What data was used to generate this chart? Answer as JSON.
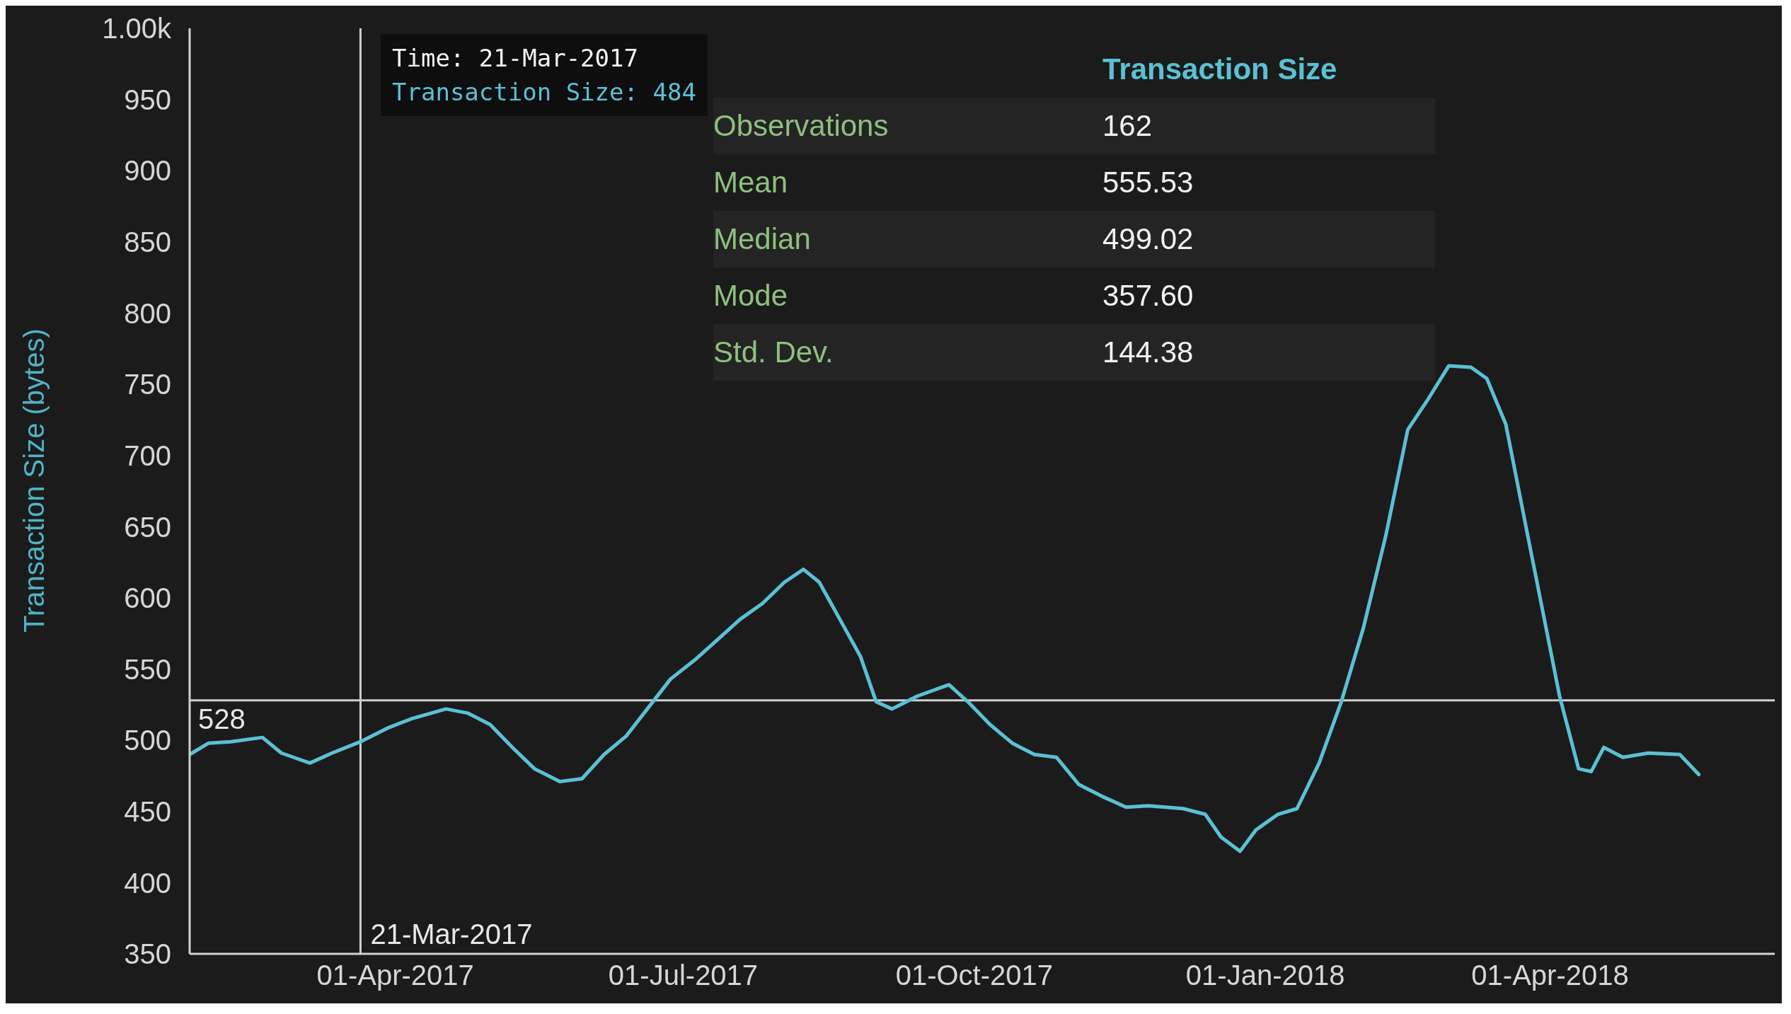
{
  "chart_data": {
    "type": "line",
    "ylabel": "Transaction Size (bytes)",
    "x": [
      "2017-01-26",
      "2017-02-01",
      "2017-02-08",
      "2017-02-18",
      "2017-02-24",
      "2017-03-05",
      "2017-03-12",
      "2017-03-21",
      "2017-03-30",
      "2017-04-06",
      "2017-04-17",
      "2017-04-24",
      "2017-05-01",
      "2017-05-08",
      "2017-05-15",
      "2017-05-23",
      "2017-05-30",
      "2017-06-06",
      "2017-06-13",
      "2017-06-20",
      "2017-06-27",
      "2017-07-05",
      "2017-07-12",
      "2017-07-19",
      "2017-07-26",
      "2017-08-02",
      "2017-08-08",
      "2017-08-13",
      "2017-08-20",
      "2017-08-26",
      "2017-08-31",
      "2017-09-05",
      "2017-09-13",
      "2017-09-23",
      "2017-09-29",
      "2017-10-06",
      "2017-10-13",
      "2017-10-20",
      "2017-10-27",
      "2017-11-03",
      "2017-11-11",
      "2017-11-18",
      "2017-11-25",
      "2017-12-06",
      "2017-12-13",
      "2017-12-18",
      "2017-12-24",
      "2017-12-29",
      "2018-01-05",
      "2018-01-11",
      "2018-01-18",
      "2018-01-25",
      "2018-02-01",
      "2018-02-08",
      "2018-02-15",
      "2018-02-21",
      "2018-02-28",
      "2018-03-07",
      "2018-03-12",
      "2018-03-18",
      "2018-03-25",
      "2018-03-30",
      "2018-04-04",
      "2018-04-10",
      "2018-04-14",
      "2018-04-18",
      "2018-04-24",
      "2018-05-02",
      "2018-05-12",
      "2018-05-18"
    ],
    "series": [
      {
        "color": "#5bc0d4",
        "values": [
          490,
          498,
          499,
          502,
          491,
          484,
          491,
          499,
          509,
          515,
          522,
          519,
          511,
          495,
          480,
          471,
          473,
          490,
          503,
          523,
          543,
          557,
          571,
          585,
          596,
          611,
          620,
          611,
          583,
          559,
          527,
          522,
          531,
          539,
          527,
          511,
          498,
          490,
          488,
          469,
          460,
          453,
          454,
          452,
          448,
          432,
          422,
          437,
          448,
          452,
          484,
          527,
          579,
          643,
          718,
          738,
          763,
          762,
          754,
          722,
          643,
          587,
          531,
          480,
          478,
          495,
          488,
          491,
          490,
          476
        ]
      }
    ],
    "xlim": [
      "2017-01-26",
      "2018-06-11"
    ],
    "xticks": [
      {
        "value": "2017-04-01",
        "label": "01-Apr-2017"
      },
      {
        "value": "2017-07-01",
        "label": "01-Jul-2017"
      },
      {
        "value": "2017-10-01",
        "label": "01-Oct-2017"
      },
      {
        "value": "2018-01-01",
        "label": "01-Jan-2018"
      },
      {
        "value": "2018-04-01",
        "label": "01-Apr-2018"
      }
    ],
    "ylim": [
      350,
      1000
    ],
    "yticks": [
      350,
      400,
      450,
      500,
      550,
      600,
      650,
      700,
      750,
      800,
      850,
      900,
      950,
      {
        "value": 1000,
        "label": "1.00k"
      }
    ],
    "grid": false,
    "legend": false,
    "marker": "none",
    "line_style": "solid",
    "ref_lines": [
      {
        "axis": "y",
        "value": 528,
        "label": "528",
        "color": "#d0d0d0"
      },
      {
        "axis": "x",
        "value": "2017-03-21",
        "label": "21-Mar-2017",
        "color": "#d0d0d0"
      }
    ],
    "annotations": [
      "Time: 21-Mar-2017",
      "Transaction Size: 484",
      "Transaction Size",
      "Observations",
      "162",
      "Mean",
      "555.53",
      "Median",
      "499.02",
      "Mode",
      "357.60",
      "Std. Dev.",
      "144.38"
    ]
  }
}
